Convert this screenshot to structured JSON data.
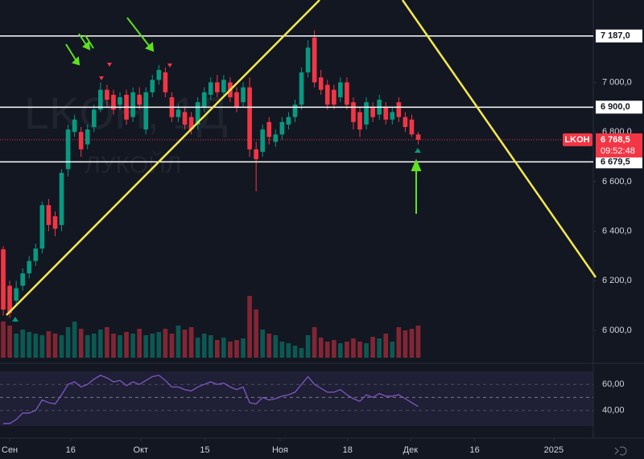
{
  "chart_data": {
    "type": "candlestick",
    "watermark": "LKOH, 1Д",
    "watermark_name": "ЛУКОЙЛ",
    "up_color": "#089981",
    "down_color": "#f23645",
    "open": [
      6327,
      6180,
      6120,
      6180,
      6230,
      6280,
      6330,
      6505,
      6460,
      6425,
      6650,
      6800,
      6800,
      6750,
      6820,
      6890,
      6970,
      6950,
      6910,
      6950,
      6860,
      6950,
      6810,
      6960,
      7010,
      7040,
      6940,
      6860,
      6880,
      6860,
      6830,
      6900,
      6950,
      7000,
      6960,
      7000,
      6960,
      6920,
      6980,
      6730,
      6720,
      6840,
      6760,
      6790,
      6830,
      6860,
      6910,
      7040,
      7180,
      7020,
      6990,
      6970,
      6940,
      7000,
      6920,
      6880,
      6830,
      6900,
      6870,
      6900,
      6850,
      6920,
      6860,
      6850,
      6790
    ],
    "high": [
      6340,
      6200,
      6200,
      6250,
      6300,
      6350,
      6520,
      6530,
      6480,
      6650,
      6830,
      6870,
      6820,
      6830,
      6910,
      7000,
      6990,
      6970,
      6960,
      6970,
      6980,
      6980,
      6980,
      7030,
      7070,
      7060,
      6960,
      6910,
      6900,
      6880,
      6940,
      6980,
      7020,
      7030,
      7030,
      7020,
      6980,
      7000,
      7020,
      6760,
      6830,
      6860,
      6810,
      6860,
      6880,
      6930,
      7060,
      7170,
      7210,
      7050,
      7010,
      6990,
      7020,
      7020,
      6940,
      6900,
      6940,
      6920,
      6950,
      6920,
      6900,
      6940,
      6880,
      6870,
      6800
    ],
    "low": [
      6060,
      6050,
      6100,
      6160,
      6210,
      6260,
      6310,
      6400,
      6380,
      6400,
      6620,
      6780,
      6700,
      6730,
      6800,
      6880,
      6900,
      6870,
      6890,
      6830,
      6840,
      6890,
      6790,
      6940,
      6990,
      6940,
      6840,
      6840,
      6810,
      6790,
      6810,
      6880,
      6930,
      6940,
      6950,
      6920,
      6880,
      6900,
      6700,
      6560,
      6700,
      6750,
      6740,
      6770,
      6810,
      6840,
      6890,
      7020,
      6980,
      6950,
      6890,
      6890,
      6920,
      6890,
      6810,
      6780,
      6810,
      6840,
      6850,
      6830,
      6830,
      6840,
      6800,
      6780,
      6750
    ],
    "close": [
      6084,
      6070,
      6170,
      6230,
      6280,
      6330,
      6505,
      6425,
      6410,
      6635,
      6810,
      6850,
      6730,
      6810,
      6890,
      6970,
      6930,
      6890,
      6940,
      6850,
      6960,
      6910,
      6960,
      7010,
      7050,
      6960,
      6860,
      6890,
      6830,
      6810,
      6920,
      6960,
      7000,
      6960,
      7010,
      6940,
      6900,
      6980,
      6730,
      6690,
      6810,
      6780,
      6790,
      6840,
      6860,
      6910,
      7040,
      7140,
      7000,
      6970,
      6910,
      6910,
      7000,
      6910,
      6840,
      6810,
      6920,
      6860,
      6930,
      6850,
      6880,
      6860,
      6820,
      6790,
      6768.5
    ],
    "volume": [
      45,
      40,
      30,
      35,
      32,
      30,
      28,
      33,
      30,
      28,
      38,
      45,
      36,
      28,
      30,
      35,
      38,
      30,
      28,
      32,
      30,
      36,
      28,
      30,
      32,
      36,
      30,
      40,
      35,
      38,
      25,
      30,
      28,
      22,
      25,
      20,
      22,
      24,
      77,
      60,
      35,
      30,
      28,
      20,
      18,
      15,
      12,
      28,
      38,
      25,
      20,
      22,
      18,
      20,
      24,
      20,
      18,
      26,
      24,
      30,
      20,
      38,
      34,
      36,
      40
    ],
    "volume_ylim": [
      0,
      200
    ],
    "xlim": [
      -0.5,
      91
    ],
    "xticks": [
      {
        "value": 1,
        "label": "Сен"
      },
      {
        "value": 10.4,
        "label": "16"
      },
      {
        "value": 21.2,
        "label": "Окт"
      },
      {
        "value": 31.1,
        "label": "15"
      },
      {
        "value": 42.7,
        "label": "Ноя"
      },
      {
        "value": 53.1,
        "label": "18"
      },
      {
        "value": 62.8,
        "label": "Дек"
      },
      {
        "value": 72.7,
        "label": "16"
      },
      {
        "value": 84.9,
        "label": "2025"
      }
    ],
    "ylim": [
      5890,
      7332
    ],
    "yticks": [
      {
        "value": 6000,
        "label": "6 000,0"
      },
      {
        "value": 6200,
        "label": "6 200,0"
      },
      {
        "value": 6400,
        "label": "6 400,0"
      },
      {
        "value": 6600,
        "label": "6 600,0"
      },
      {
        "value": 6800,
        "label": "6 800,0"
      },
      {
        "value": 7000,
        "label": "7 000,0"
      }
    ],
    "levels": [
      {
        "value": 7187,
        "label": "7 187,0"
      },
      {
        "value": 6900,
        "label": "6 900,0"
      },
      {
        "value": 6679.5,
        "label": "6 679,5"
      }
    ],
    "last_price": {
      "symbol": "LKOH",
      "value": 6768.5,
      "label": "6 768,5",
      "countdown": "09:52:48"
    },
    "rsi": {
      "color": "#7e57c2",
      "values": [
        30,
        30,
        33,
        38,
        38,
        40,
        48,
        46,
        45,
        52,
        60,
        62,
        58,
        60,
        64,
        67,
        65,
        62,
        63,
        59,
        62,
        60,
        63,
        66,
        67,
        63,
        58,
        58,
        56,
        55,
        58,
        60,
        62,
        60,
        61,
        58,
        56,
        58,
        46,
        45,
        50,
        48,
        49,
        51,
        52,
        54,
        60,
        66,
        60,
        57,
        54,
        54,
        56,
        52,
        49,
        47,
        52,
        50,
        53,
        51,
        51,
        52,
        49,
        46,
        43
      ],
      "ylim": [
        28,
        70
      ],
      "yticks": [
        {
          "value": 60,
          "label": "60,00"
        },
        {
          "value": 40,
          "label": "40,00"
        }
      ],
      "middle": 50
    }
  }
}
